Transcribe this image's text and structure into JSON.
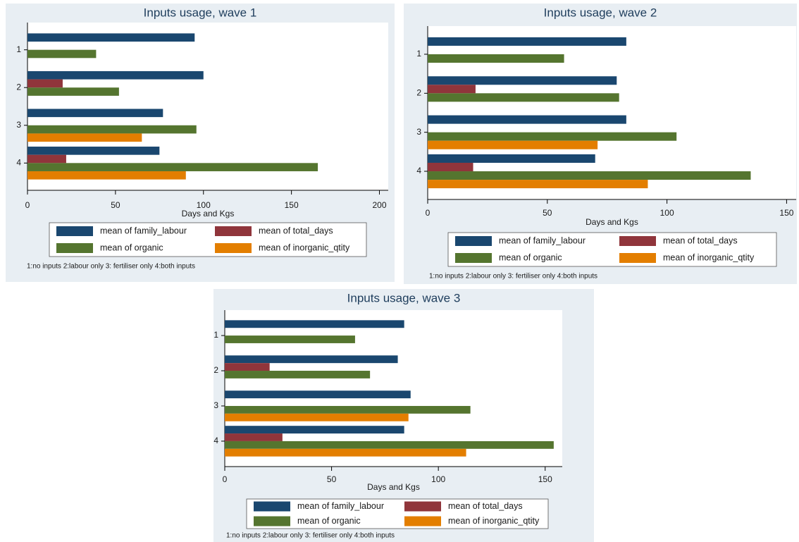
{
  "chart_data": [
    {
      "type": "hbar",
      "title": "Inputs usage, wave 1",
      "xlabel": "Days and Kgs",
      "note": "1:no inputs  2:labour only  3: fertiliser only  4:both inputs",
      "categories": [
        "1",
        "2",
        "3",
        "4"
      ],
      "series": [
        {
          "name": "mean of family_labour",
          "color": "#1a476f",
          "values": [
            95,
            100,
            77,
            75
          ]
        },
        {
          "name": "mean of total_days",
          "color": "#90353b",
          "values": [
            null,
            20,
            null,
            22
          ]
        },
        {
          "name": "mean of organic",
          "color": "#55752f",
          "values": [
            39,
            52,
            96,
            165
          ]
        },
        {
          "name": "mean of inorganic_qtity",
          "color": "#e37e00",
          "values": [
            null,
            null,
            65,
            90
          ]
        }
      ],
      "xlim": [
        0,
        205
      ],
      "xticks": [
        0,
        50,
        100,
        150,
        200
      ]
    },
    {
      "type": "hbar",
      "title": "Inputs usage, wave 2",
      "xlabel": "Days and Kgs",
      "note": "1:no inputs  2:labour only  3: fertiliser only  4:both inputs",
      "categories": [
        "1",
        "2",
        "3",
        "4"
      ],
      "series": [
        {
          "name": "mean of family_labour",
          "color": "#1a476f",
          "values": [
            83,
            79,
            83,
            70
          ]
        },
        {
          "name": "mean of total_days",
          "color": "#90353b",
          "values": [
            null,
            20,
            null,
            19
          ]
        },
        {
          "name": "mean of organic",
          "color": "#55752f",
          "values": [
            57,
            80,
            104,
            135
          ]
        },
        {
          "name": "mean of inorganic_qtity",
          "color": "#e37e00",
          "values": [
            null,
            null,
            71,
            92
          ]
        }
      ],
      "xlim": [
        0,
        154
      ],
      "xticks": [
        0,
        50,
        100,
        150
      ]
    },
    {
      "type": "hbar",
      "title": "Inputs usage, wave 3",
      "xlabel": "Days and Kgs",
      "note": "1:no inputs  2:labour only  3: fertiliser only  4:both inputs",
      "categories": [
        "1",
        "2",
        "3",
        "4"
      ],
      "series": [
        {
          "name": "mean of family_labour",
          "color": "#1a476f",
          "values": [
            84,
            81,
            87,
            84
          ]
        },
        {
          "name": "mean of total_days",
          "color": "#90353b",
          "values": [
            null,
            21,
            null,
            27
          ]
        },
        {
          "name": "mean of organic",
          "color": "#55752f",
          "values": [
            61,
            68,
            115,
            154
          ]
        },
        {
          "name": "mean of inorganic_qtity",
          "color": "#e37e00",
          "values": [
            null,
            null,
            86,
            113
          ]
        }
      ],
      "xlim": [
        0,
        158
      ],
      "xticks": [
        0,
        50,
        100,
        150
      ]
    }
  ]
}
